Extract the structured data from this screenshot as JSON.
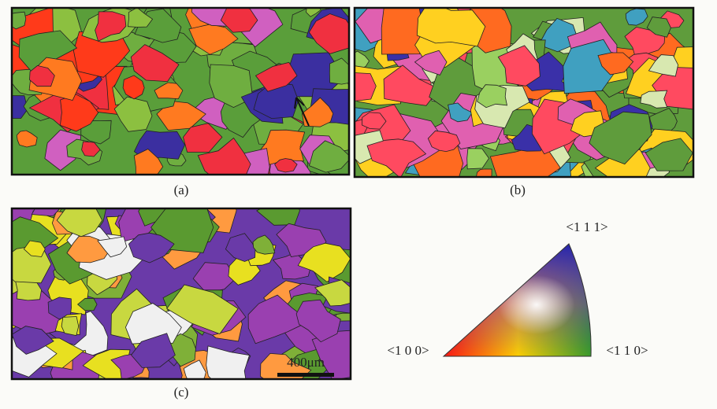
{
  "panels": [
    {
      "label": "(a)"
    },
    {
      "label": "(b)"
    },
    {
      "label": "(c)",
      "scale_bar": "400μm"
    }
  ],
  "legend": {
    "top": "<1 1 1>",
    "left": "<1 0 0>",
    "right": "<1 1 0>"
  }
}
